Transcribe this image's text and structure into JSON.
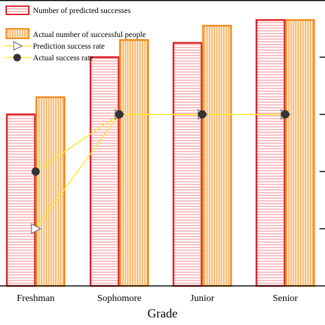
{
  "chart_data": {
    "type": "bar",
    "xlabel": "Grade",
    "categories": [
      "Freshman",
      "Sophomore",
      "Junior",
      "Senior"
    ],
    "bar_series": [
      {
        "name": "Number of predicted successes",
        "values": [
          60,
          80,
          85,
          93
        ],
        "stroke": "#dd1f26",
        "hatch": "#f08088",
        "fill": "#ffffff",
        "pattern": "horizontal"
      },
      {
        "name": "Actual number of successful people",
        "values": [
          66,
          86,
          91,
          93
        ],
        "stroke": "#f08a1c",
        "hatch": "#f5a04a",
        "fill": "#fde8c8",
        "pattern": "vertical"
      }
    ],
    "line_series": [
      {
        "name": "Prediction success rate",
        "values": [
          20,
          60,
          60,
          60
        ],
        "color": "#ffe733",
        "marker": "open-triangle-right"
      },
      {
        "name": "Actual success rate",
        "values": [
          40,
          60,
          60,
          60
        ],
        "color": "#ffe733",
        "marker": "filled-circle"
      }
    ],
    "bar_axis_range": [
      0,
      100
    ],
    "rate_axis_range": [
      0,
      100
    ],
    "legend_position": "top-left",
    "grid": false
  }
}
